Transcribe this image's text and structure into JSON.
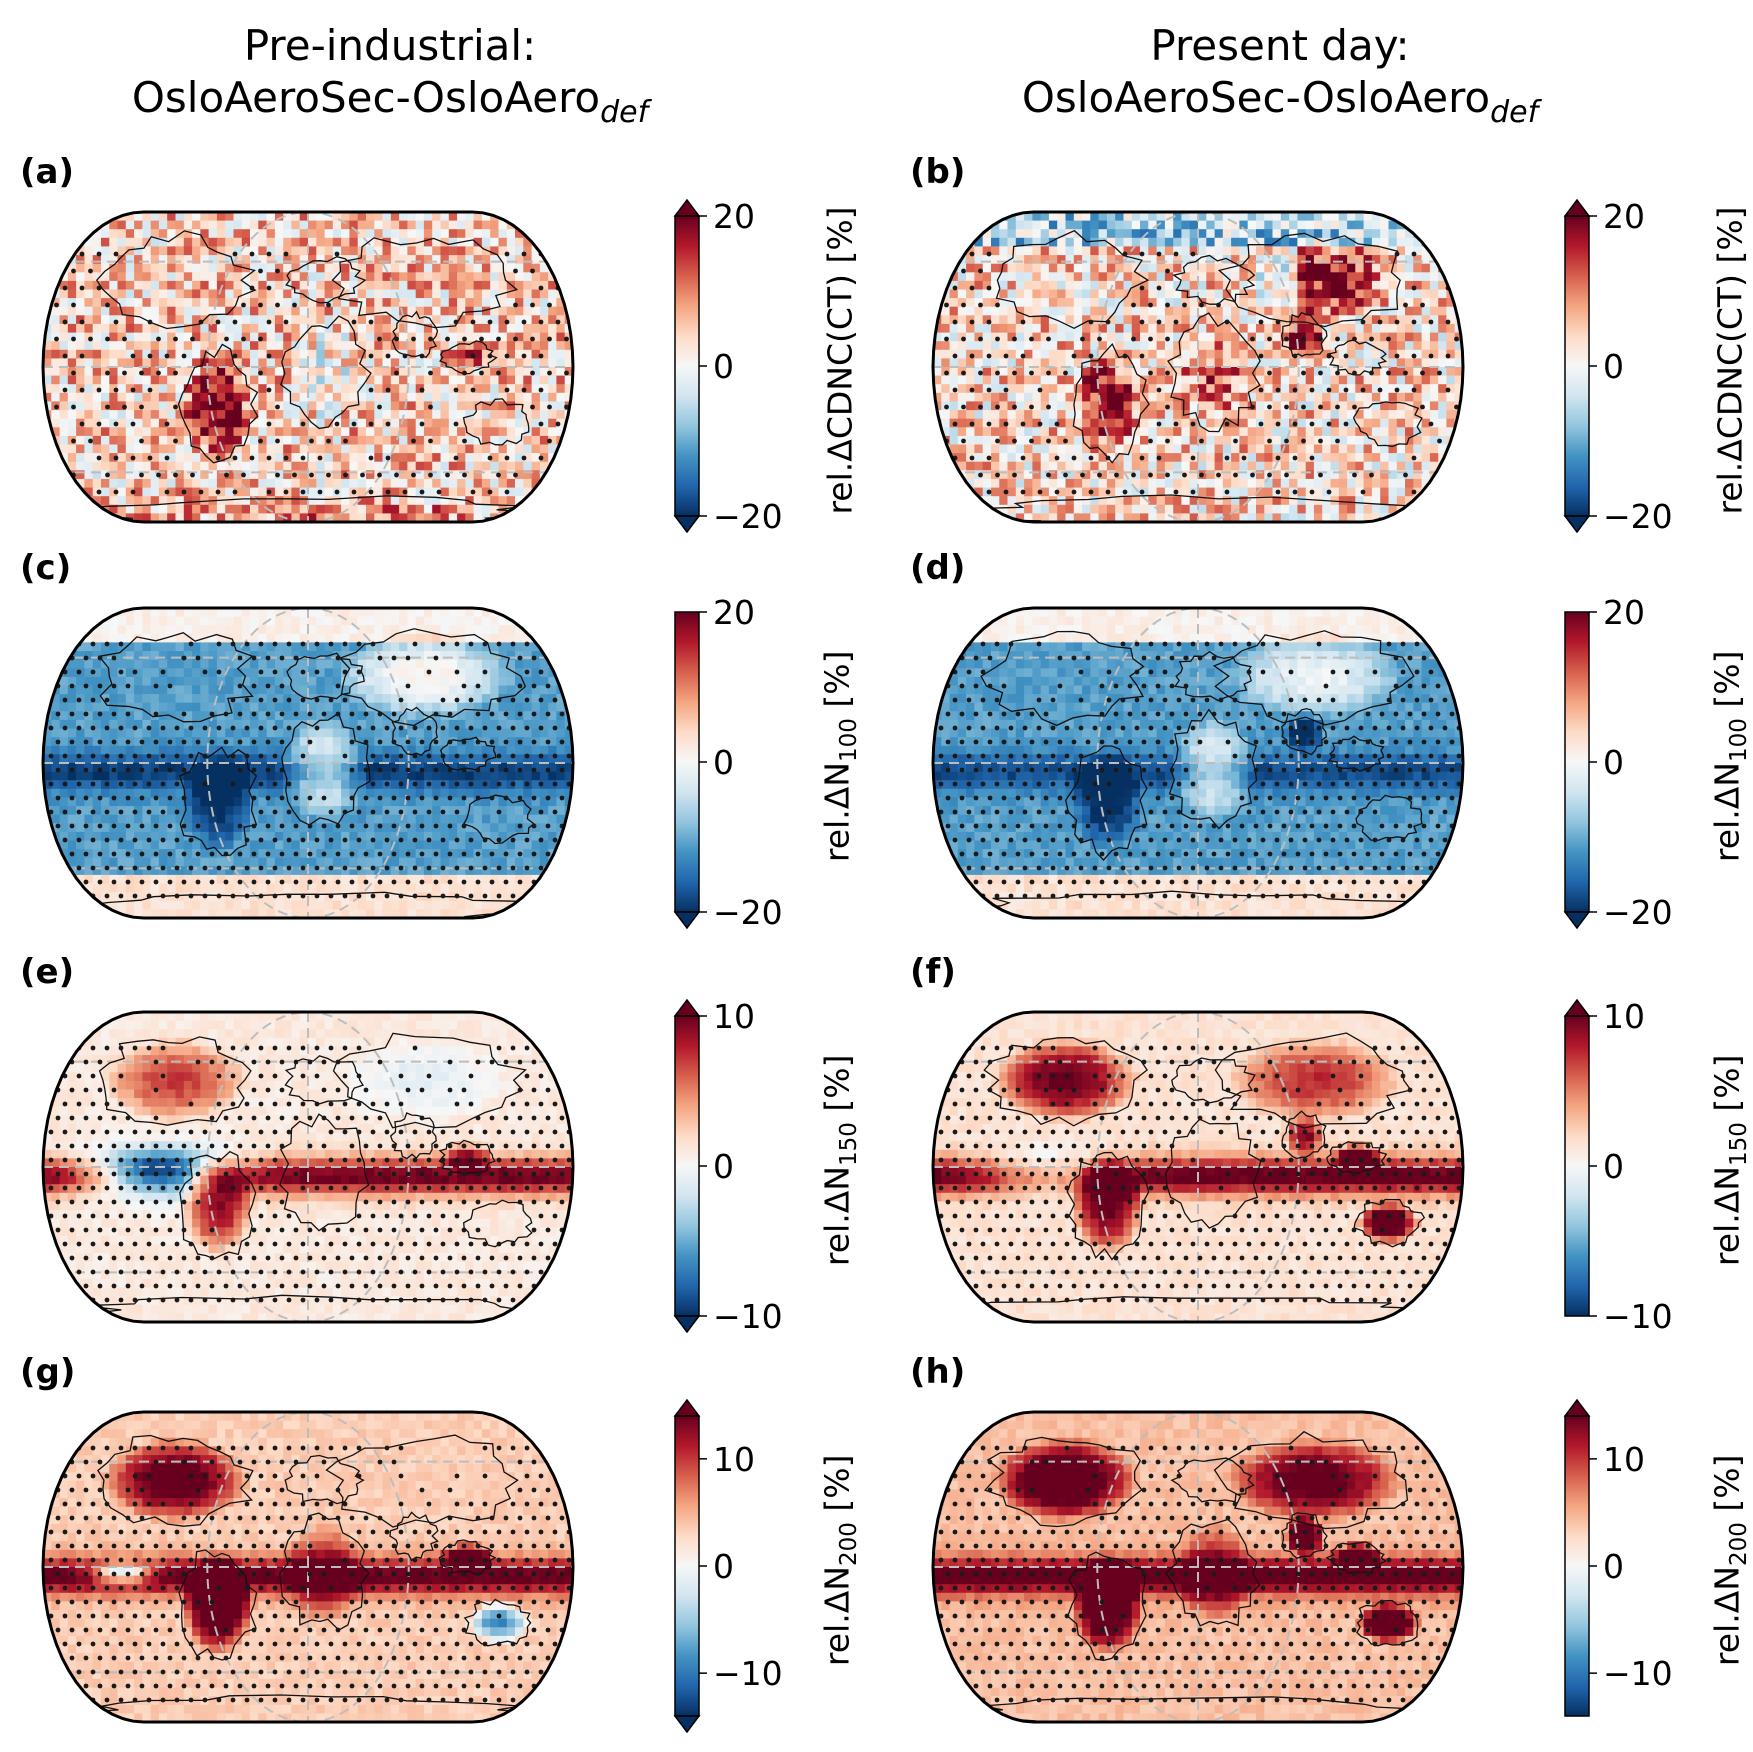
{
  "columns": [
    {
      "title_line1": "Pre-industrial:",
      "title_line2": "OsloAeroSec-OsloAero",
      "title_sub": "def"
    },
    {
      "title_line1": "Present day:",
      "title_line2": "OsloAeroSec-OsloAero",
      "title_sub": "def"
    }
  ],
  "panels": [
    {
      "label": "(a)",
      "cbar_label": "rel.ΔCDNC(CT) [%]",
      "cbar_sub": "",
      "cbar_sub_suffix": "",
      "ticks": [
        "20",
        "0",
        "−20"
      ],
      "range": [
        -20,
        20
      ],
      "extend": "both",
      "pattern": "cdnc",
      "stipple": "sparse"
    },
    {
      "label": "(b)",
      "cbar_label": "rel.ΔCDNC(CT) [%]",
      "cbar_sub": "",
      "cbar_sub_suffix": "",
      "ticks": [
        "20",
        "0",
        "−20"
      ],
      "range": [
        -20,
        20
      ],
      "extend": "both",
      "pattern": "cdnc_pd",
      "stipple": "sparse"
    },
    {
      "label": "(c)",
      "cbar_label": "rel.ΔN",
      "cbar_sub": "100",
      "cbar_sub_suffix": " [%]",
      "ticks": [
        "20",
        "0",
        "−20"
      ],
      "range": [
        -20,
        20
      ],
      "extend": "min",
      "pattern": "n100",
      "stipple": "dense"
    },
    {
      "label": "(d)",
      "cbar_label": "rel.ΔN",
      "cbar_sub": "100",
      "cbar_sub_suffix": " [%]",
      "ticks": [
        "20",
        "0",
        "−20"
      ],
      "range": [
        -20,
        20
      ],
      "extend": "min",
      "pattern": "n100_pd",
      "stipple": "dense"
    },
    {
      "label": "(e)",
      "cbar_label": "rel.ΔN",
      "cbar_sub": "150",
      "cbar_sub_suffix": " [%]",
      "ticks": [
        "10",
        "0",
        "−10"
      ],
      "range": [
        -10,
        10
      ],
      "extend": "both",
      "pattern": "n150",
      "stipple": "dense"
    },
    {
      "label": "(f)",
      "cbar_label": "rel.ΔN",
      "cbar_sub": "150",
      "cbar_sub_suffix": " [%]",
      "ticks": [
        "10",
        "0",
        "−10"
      ],
      "range": [
        -10,
        10
      ],
      "extend": "max",
      "pattern": "n150_pd",
      "stipple": "dense"
    },
    {
      "label": "(g)",
      "cbar_label": "rel.ΔN",
      "cbar_sub": "200",
      "cbar_sub_suffix": " [%]",
      "ticks": [
        "10",
        "0",
        "−10"
      ],
      "range": [
        -14,
        14
      ],
      "extend": "both",
      "pattern": "n200",
      "stipple": "dense"
    },
    {
      "label": "(h)",
      "cbar_label": "rel.ΔN",
      "cbar_sub": "200",
      "cbar_sub_suffix": " [%]",
      "ticks": [
        "10",
        "0",
        "−10"
      ],
      "range": [
        -14,
        14
      ],
      "extend": "max",
      "pattern": "n200_pd",
      "stipple": "dense"
    }
  ],
  "colormap": {
    "name": "RdBu_r",
    "colors": [
      "#053061",
      "#2166ac",
      "#4393c3",
      "#92c5de",
      "#d1e5f0",
      "#f7f7f7",
      "#fddbc7",
      "#f4a582",
      "#d6604d",
      "#b2182b",
      "#67001f"
    ]
  },
  "colors": {
    "outline": "#000000",
    "gridline": "#bdbdbd",
    "stipple": "#1a1a1a",
    "coastline": "#111111"
  }
}
